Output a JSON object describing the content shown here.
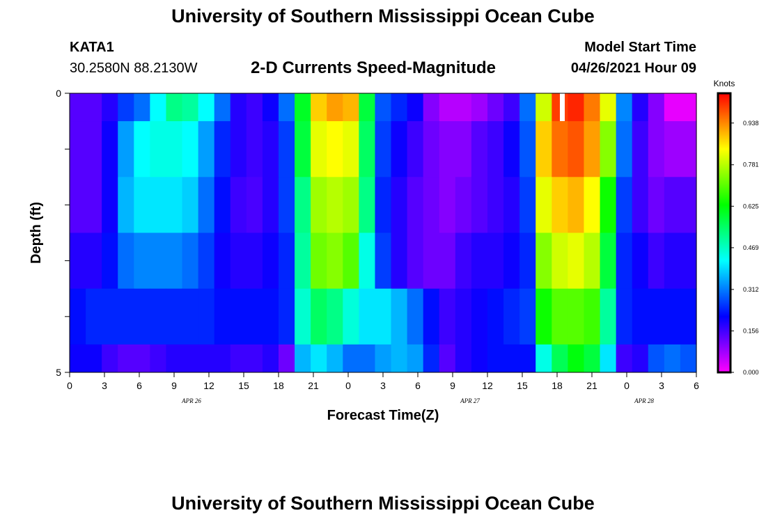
{
  "header": {
    "title": "University of Southern Mississippi Ocean Cube",
    "station": "KATA1",
    "coords": "30.2580N  88.2130W",
    "subtitle": "2-D Currents Speed-Magnitude",
    "model_start_label": "Model Start Time",
    "model_start_value": "04/26/2021 Hour 09"
  },
  "footer": {
    "title": "University of Southern Mississippi Ocean Cube"
  },
  "chart_data": {
    "type": "heatmap",
    "title": "2-D Currents Speed-Magnitude",
    "xlabel": "Forecast Time(Z)",
    "ylabel": "Depth (ft)",
    "x_tick_labels": [
      "0",
      "3",
      "6",
      "9",
      "12",
      "15",
      "18",
      "21",
      "0",
      "3",
      "6",
      "9",
      "12",
      "15",
      "18",
      "21",
      "0",
      "3",
      "6"
    ],
    "date_labels": [
      {
        "text": "APR  26",
        "tick_index": 3.5
      },
      {
        "text": "APR  27",
        "tick_index": 11.5
      },
      {
        "text": "APR  28",
        "tick_index": 16.5
      }
    ],
    "y_tick_labels": [
      "0",
      "5"
    ],
    "ylim": [
      0,
      5
    ],
    "colorbar": {
      "title": "Knots",
      "min": 0.0,
      "max": 1.05,
      "tick_labels": [
        "0.000",
        "0.156",
        "0.312",
        "0.469",
        "0.625",
        "0.781",
        "0.938"
      ],
      "tick_values": [
        0.0,
        0.156,
        0.312,
        0.469,
        0.625,
        0.781,
        0.938
      ],
      "stops": [
        "#ff00ff",
        "#7f00ff",
        "#0000ff",
        "#0080ff",
        "#00ffff",
        "#00ff80",
        "#00ff00",
        "#80ff00",
        "#ffff00",
        "#ff8000",
        "#ff0000"
      ]
    },
    "depth_rows": [
      {
        "depth_range": [
          0.0,
          0.5
        ],
        "values": [
          0.14,
          0.14,
          0.18,
          0.26,
          0.3,
          0.42,
          0.52,
          0.5,
          0.42,
          0.3,
          0.18,
          0.16,
          0.2,
          0.3,
          0.6,
          0.88,
          0.92,
          0.9,
          0.58,
          0.28,
          0.24,
          0.2,
          0.1,
          0.06,
          0.06,
          0.08,
          0.12,
          0.16,
          0.3,
          0.8,
          1.0,
          1.02,
          0.95,
          0.82,
          0.32,
          0.18,
          0.1,
          0.02,
          0.02
        ]
      },
      {
        "depth_range": [
          0.5,
          1.5
        ],
        "values": [
          0.14,
          0.14,
          0.2,
          0.34,
          0.42,
          0.44,
          0.44,
          0.42,
          0.34,
          0.24,
          0.18,
          0.16,
          0.18,
          0.26,
          0.58,
          0.82,
          0.84,
          0.82,
          0.55,
          0.26,
          0.2,
          0.16,
          0.12,
          0.1,
          0.1,
          0.14,
          0.16,
          0.2,
          0.28,
          0.88,
          0.96,
          0.98,
          0.92,
          0.74,
          0.3,
          0.16,
          0.1,
          0.08,
          0.08
        ]
      },
      {
        "depth_range": [
          1.5,
          2.5
        ],
        "values": [
          0.14,
          0.14,
          0.2,
          0.36,
          0.4,
          0.4,
          0.4,
          0.38,
          0.3,
          0.22,
          0.16,
          0.15,
          0.18,
          0.26,
          0.52,
          0.76,
          0.78,
          0.76,
          0.52,
          0.24,
          0.18,
          0.14,
          0.12,
          0.1,
          0.12,
          0.14,
          0.16,
          0.18,
          0.26,
          0.82,
          0.88,
          0.9,
          0.84,
          0.64,
          0.26,
          0.16,
          0.12,
          0.14,
          0.14
        ]
      },
      {
        "depth_range": [
          2.5,
          3.5
        ],
        "values": [
          0.18,
          0.18,
          0.22,
          0.3,
          0.32,
          0.32,
          0.32,
          0.3,
          0.26,
          0.2,
          0.18,
          0.18,
          0.2,
          0.24,
          0.5,
          0.72,
          0.74,
          0.7,
          0.44,
          0.26,
          0.18,
          0.14,
          0.12,
          0.12,
          0.16,
          0.18,
          0.18,
          0.2,
          0.24,
          0.74,
          0.8,
          0.82,
          0.78,
          0.58,
          0.24,
          0.2,
          0.16,
          0.18,
          0.18
        ]
      },
      {
        "depth_range": [
          3.5,
          4.5
        ],
        "values": [
          0.22,
          0.24,
          0.24,
          0.24,
          0.24,
          0.24,
          0.24,
          0.24,
          0.24,
          0.22,
          0.22,
          0.22,
          0.22,
          0.24,
          0.46,
          0.55,
          0.52,
          0.45,
          0.4,
          0.4,
          0.36,
          0.3,
          0.22,
          0.16,
          0.18,
          0.2,
          0.22,
          0.24,
          0.26,
          0.64,
          0.7,
          0.7,
          0.68,
          0.5,
          0.24,
          0.22,
          0.22,
          0.22,
          0.22
        ]
      },
      {
        "depth_range": [
          4.5,
          5.0
        ],
        "values": [
          0.2,
          0.2,
          0.16,
          0.14,
          0.14,
          0.16,
          0.18,
          0.18,
          0.18,
          0.18,
          0.16,
          0.16,
          0.18,
          0.12,
          0.36,
          0.4,
          0.36,
          0.3,
          0.3,
          0.34,
          0.36,
          0.34,
          0.24,
          0.14,
          0.18,
          0.2,
          0.22,
          0.22,
          0.22,
          0.44,
          0.56,
          0.62,
          0.58,
          0.4,
          0.16,
          0.18,
          0.28,
          0.3,
          0.28
        ]
      }
    ]
  }
}
